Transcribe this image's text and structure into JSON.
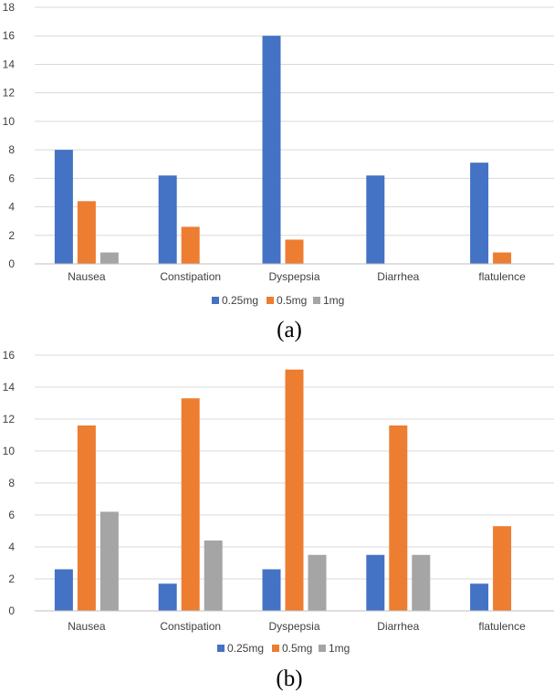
{
  "chart_data": [
    {
      "type": "bar",
      "panel_label": "(a)",
      "categories": [
        "Nausea",
        "Constipation",
        "Dyspepsia",
        "Diarrhea",
        "flatulence"
      ],
      "series": [
        {
          "name": "0.25mg",
          "color": "#4472C4",
          "values": [
            8,
            6.2,
            16,
            6.2,
            7.1
          ]
        },
        {
          "name": "0.5mg",
          "color": "#ED7D31",
          "values": [
            4.4,
            2.6,
            1.7,
            0,
            0.8
          ]
        },
        {
          "name": "1mg",
          "color": "#A5A5A5",
          "values": [
            0.8,
            0,
            0,
            0,
            0
          ]
        }
      ],
      "ylim": [
        0,
        18
      ],
      "yticks": [
        0,
        2,
        4,
        6,
        8,
        10,
        12,
        14,
        16,
        18
      ],
      "grid": true,
      "legend": "bottom-center",
      "title": "",
      "xlabel": "",
      "ylabel": ""
    },
    {
      "type": "bar",
      "panel_label": "(b)",
      "categories": [
        "Nausea",
        "Constipation",
        "Dyspepsia",
        "Diarrhea",
        "flatulence"
      ],
      "series": [
        {
          "name": "0.25mg",
          "color": "#4472C4",
          "values": [
            2.6,
            1.7,
            2.6,
            3.5,
            1.7
          ]
        },
        {
          "name": "0.5mg",
          "color": "#ED7D31",
          "values": [
            11.6,
            13.3,
            15.1,
            11.6,
            5.3
          ]
        },
        {
          "name": "1mg",
          "color": "#A5A5A5",
          "values": [
            6.2,
            4.4,
            3.5,
            3.5,
            0
          ]
        }
      ],
      "ylim": [
        0,
        16
      ],
      "yticks": [
        0,
        2,
        4,
        6,
        8,
        10,
        12,
        14,
        16
      ],
      "grid": true,
      "legend": "bottom-center",
      "title": "",
      "xlabel": "",
      "ylabel": ""
    }
  ]
}
